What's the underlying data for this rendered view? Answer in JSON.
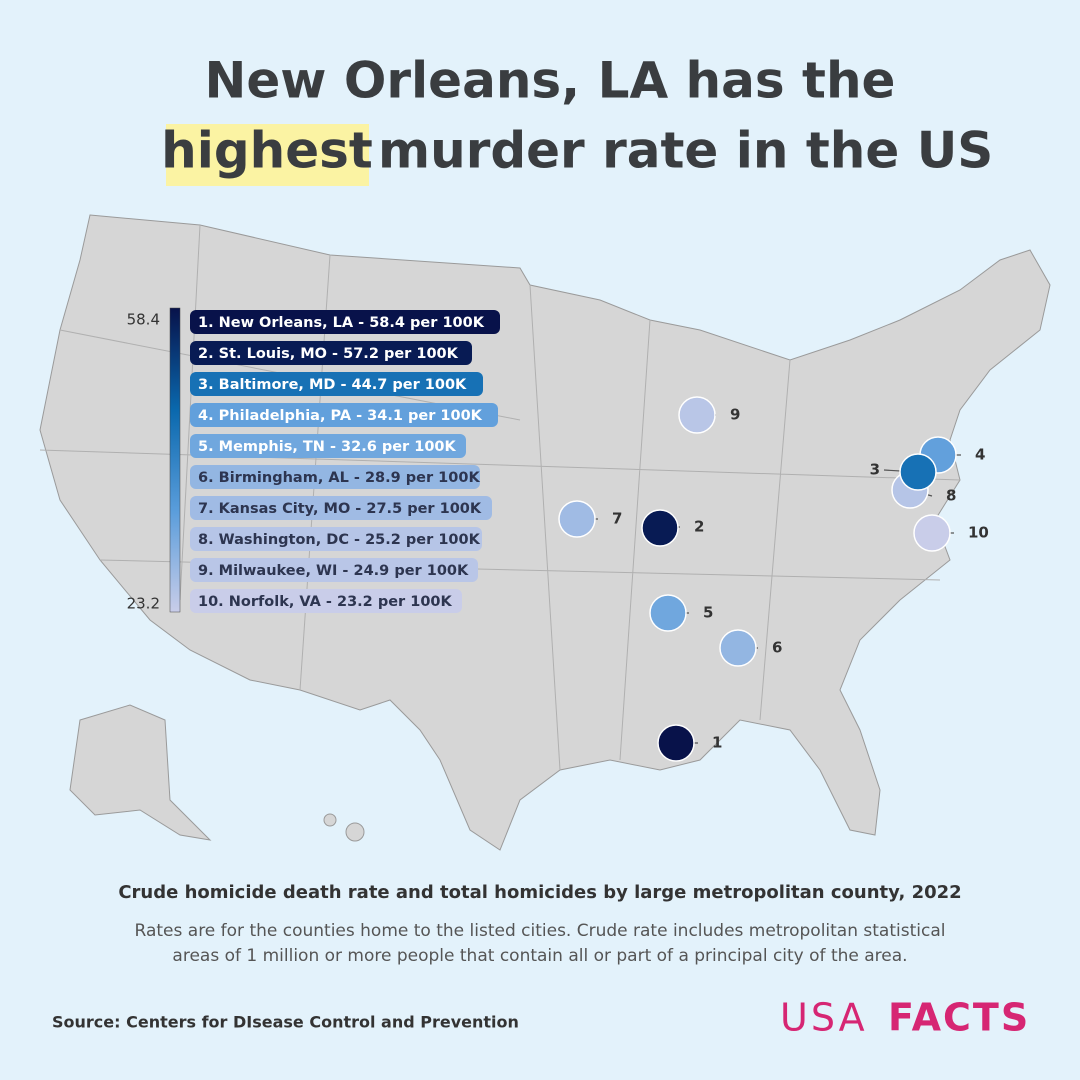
{
  "title": {
    "line1": "New Orleans, LA has the",
    "highlight": "highest",
    "line2": "murder rate in the US"
  },
  "color_scale": {
    "max": 58.4,
    "min": 23.2,
    "colors": [
      "#08124a",
      "#0a68ad",
      "#5a9ddb",
      "#c9cde9"
    ]
  },
  "cities": [
    {
      "rank": 1,
      "label": "1. New Orleans, LA - 58.4 per 100K",
      "rate": 58.4
    },
    {
      "rank": 2,
      "label": "2. St. Louis, MO - 57.2 per 100K",
      "rate": 57.2
    },
    {
      "rank": 3,
      "label": "3. Baltimore, MD - 44.7 per 100K",
      "rate": 44.7
    },
    {
      "rank": 4,
      "label": "4. Philadelphia, PA - 34.1 per 100K",
      "rate": 34.1
    },
    {
      "rank": 5,
      "label": "5. Memphis, TN - 32.6 per 100K",
      "rate": 32.6
    },
    {
      "rank": 6,
      "label": "6. Birmingham, AL - 28.9 per 100K",
      "rate": 28.9
    },
    {
      "rank": 7,
      "label": "7. Kansas City, MO - 27.5 per 100K",
      "rate": 27.5
    },
    {
      "rank": 8,
      "label": "8. Washington, DC - 25.2 per 100K",
      "rate": 25.2
    },
    {
      "rank": 9,
      "label": "9. Milwaukee, WI - 24.9 per 100K",
      "rate": 24.9
    },
    {
      "rank": 10,
      "label": "10. Norfolk, VA - 23.2 per 100K",
      "rate": 23.2
    }
  ],
  "subtitle": "Crude homicide death rate and total homicides by large metropolitan county, 2022",
  "note": {
    "line1": "Rates are for the counties home to the listed cities. Crude rate includes metropolitan statistical",
    "line2": "areas of 1 million or more people that contain all or part of a principal city of the area."
  },
  "source": "Source: Centers for DIsease Control and Prevention",
  "logo": {
    "part1": "USA",
    "part2": "FACTS"
  }
}
